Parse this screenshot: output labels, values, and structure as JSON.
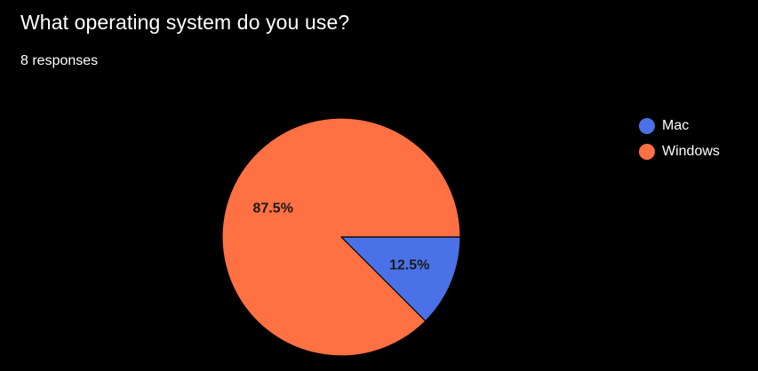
{
  "header": {
    "question": "What operating system do you use?",
    "responses": "8 responses"
  },
  "chart_data": {
    "type": "pie",
    "title": "What operating system do you use?",
    "categories": [
      "Mac",
      "Windows"
    ],
    "values": [
      12.5,
      87.5
    ],
    "labels": [
      "12.5%",
      "87.5%"
    ],
    "colors": [
      "#4a72e6",
      "#ff7043"
    ],
    "legend_position": "right",
    "start_direction": "east, clockwise"
  }
}
